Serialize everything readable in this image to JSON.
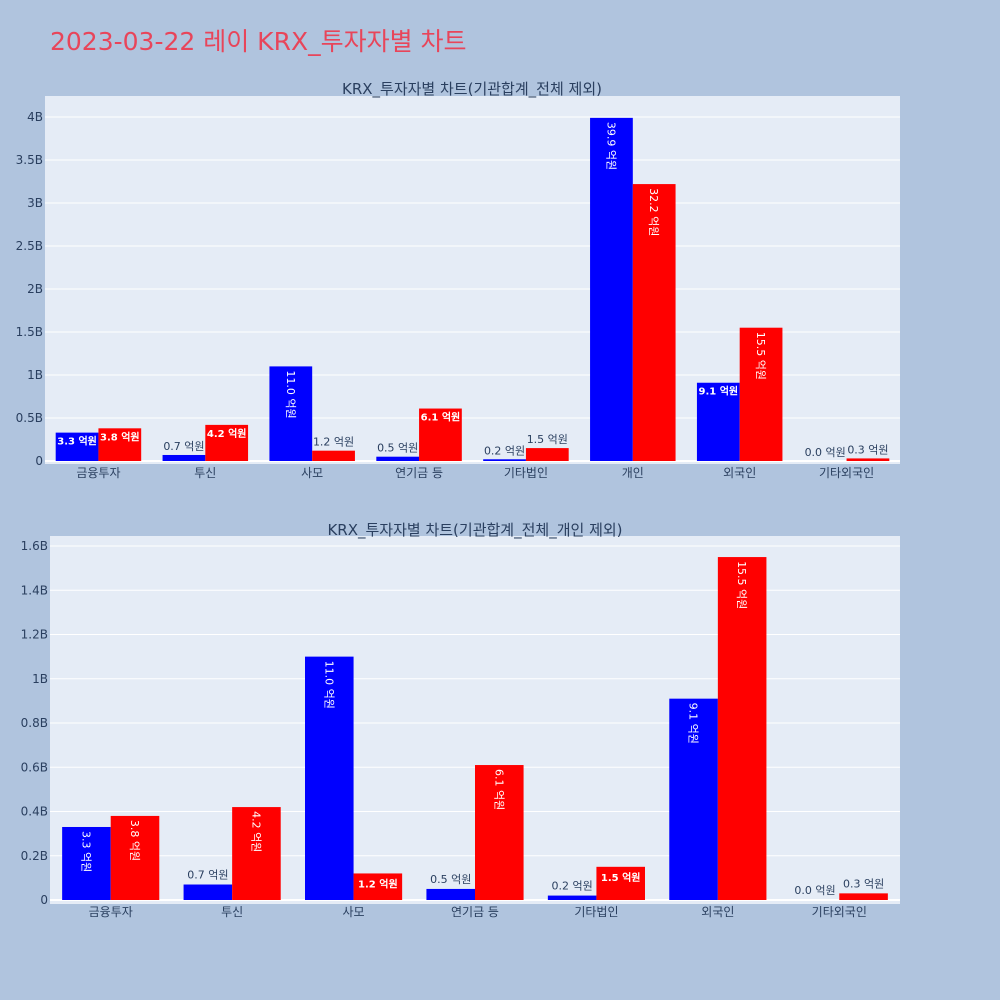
{
  "title": "2023-03-22 레이 KRX_투자자별 차트",
  "colors": {
    "series_a": "#0000ff",
    "series_b": "#ff0000",
    "plot_bg": "#e5ecf6",
    "page_bg": "#b0c4de",
    "title": "#e8455a"
  },
  "chart_data": [
    {
      "type": "bar",
      "title": "KRX_투자자별 차트(기관합계_전체 제외)",
      "categories": [
        "금융투자",
        "투신",
        "사모",
        "연기금 등",
        "기타법인",
        "개인",
        "외국인",
        "기타외국인"
      ],
      "series": [
        {
          "values": [
            0.33,
            0.07,
            1.1,
            0.05,
            0.02,
            3.99,
            0.91,
            0.0
          ],
          "labels": [
            "3.3 억원",
            "0.7 억원",
            "11.0 억원",
            "0.5 억원",
            "0.2 억원",
            "39.9 억원",
            "9.1 억원",
            "0.0 억원"
          ]
        },
        {
          "values": [
            0.38,
            0.42,
            0.12,
            0.61,
            0.15,
            3.22,
            1.55,
            0.03
          ],
          "labels": [
            "3.8 억원",
            "4.2 억원",
            "1.2 억원",
            "6.1 억원",
            "1.5 억원",
            "32.2 억원",
            "15.5 억원",
            "0.3 억원"
          ]
        }
      ],
      "ylim": [
        0,
        4.2
      ],
      "yticks": [
        0,
        0.5,
        1,
        1.5,
        2,
        2.5,
        3,
        3.5,
        4
      ],
      "ytick_labels": [
        "0",
        "0.5B",
        "1B",
        "1.5B",
        "2B",
        "2.5B",
        "3B",
        "3.5B",
        "4B"
      ],
      "unit": "B",
      "grid": true
    },
    {
      "type": "bar",
      "title": "KRX_투자자별 차트(기관합계_전체_개인 제외)",
      "categories": [
        "금융투자",
        "투신",
        "사모",
        "연기금 등",
        "기타법인",
        "외국인",
        "기타외국인"
      ],
      "series": [
        {
          "values": [
            0.33,
            0.07,
            1.1,
            0.05,
            0.02,
            0.91,
            0.0
          ],
          "labels": [
            "3.3 억원",
            "0.7 억원",
            "11.0 억원",
            "0.5 억원",
            "0.2 억원",
            "9.1 억원",
            "0.0 억원"
          ]
        },
        {
          "values": [
            0.38,
            0.42,
            0.12,
            0.61,
            0.15,
            1.55,
            0.03
          ],
          "labels": [
            "3.8 억원",
            "4.2 억원",
            "1.2 억원",
            "6.1 억원",
            "1.5 억원",
            "15.5 억원",
            "0.3 억원"
          ]
        }
      ],
      "ylim": [
        0,
        1.65
      ],
      "yticks": [
        0,
        0.2,
        0.4,
        0.6,
        0.8,
        1.0,
        1.2,
        1.4,
        1.6
      ],
      "ytick_labels": [
        "0",
        "0.2B",
        "0.4B",
        "0.6B",
        "0.8B",
        "1B",
        "1.2B",
        "1.4B",
        "1.6B"
      ],
      "unit": "B",
      "grid": true
    }
  ]
}
